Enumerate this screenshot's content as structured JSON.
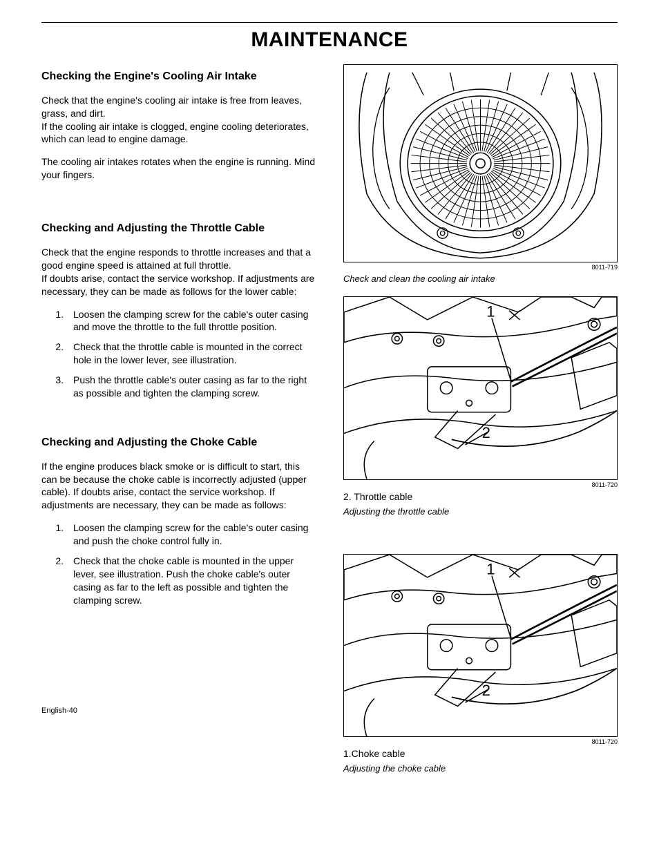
{
  "title": "MAINTENANCE",
  "left": {
    "s1": {
      "heading": "Checking the Engine's Cooling Air Intake",
      "p1": "Check that the engine's cooling air intake is free from leaves, grass, and dirt.\nIf the cooling air intake is clogged, engine cooling deteriorates, which can lead to engine damage.",
      "p2": "The cooling air intakes rotates when the engine is running. Mind your fingers."
    },
    "s2": {
      "heading": "Checking and Adjusting the Throttle Cable",
      "p1": "Check that the engine responds to throttle increases and that a good engine speed is attained at full throttle.\nIf doubts arise, contact the service workshop. If adjustments are necessary, they can be made as follows for the lower cable:",
      "li1": "Loosen the clamping screw for the cable's outer casing and move the throttle to the full throttle position.",
      "li2": "Check that the throttle cable is mounted in the correct hole in the lower lever, see illustration.",
      "li3": "Push the throttle cable's outer casing as far to the right as possible and tighten the clamping screw."
    },
    "s3": {
      "heading": "Checking and Adjusting the Choke Cable",
      "p1": "If the engine produces black smoke or is difficult to start, this can be because the choke cable is incorrectly adjusted (upper cable). If doubts arise, contact the service workshop. If adjustments are necessary, they can be made as follows:",
      "li1": "Loosen the clamping screw for the cable's outer casing and push the choke control fully in.",
      "li2": "Check that the choke cable is mounted in the upper lever, see illustration. Push the choke cable's outer casing as far to the left as possible and tighten the clamping screw."
    }
  },
  "right": {
    "fig1": {
      "code": "8011-719",
      "caption": "Check and clean the cooling air intake"
    },
    "fig2": {
      "code": "8011-720",
      "label": "2. Throttle cable",
      "caption": "Adjusting the throttle cable"
    },
    "fig3": {
      "code": "8011-720",
      "label": "1.Choke cable",
      "caption": "Adjusting the choke cable"
    }
  },
  "footer": "English-40",
  "svg": {
    "stroke": "#000000",
    "callout_font": "20"
  }
}
